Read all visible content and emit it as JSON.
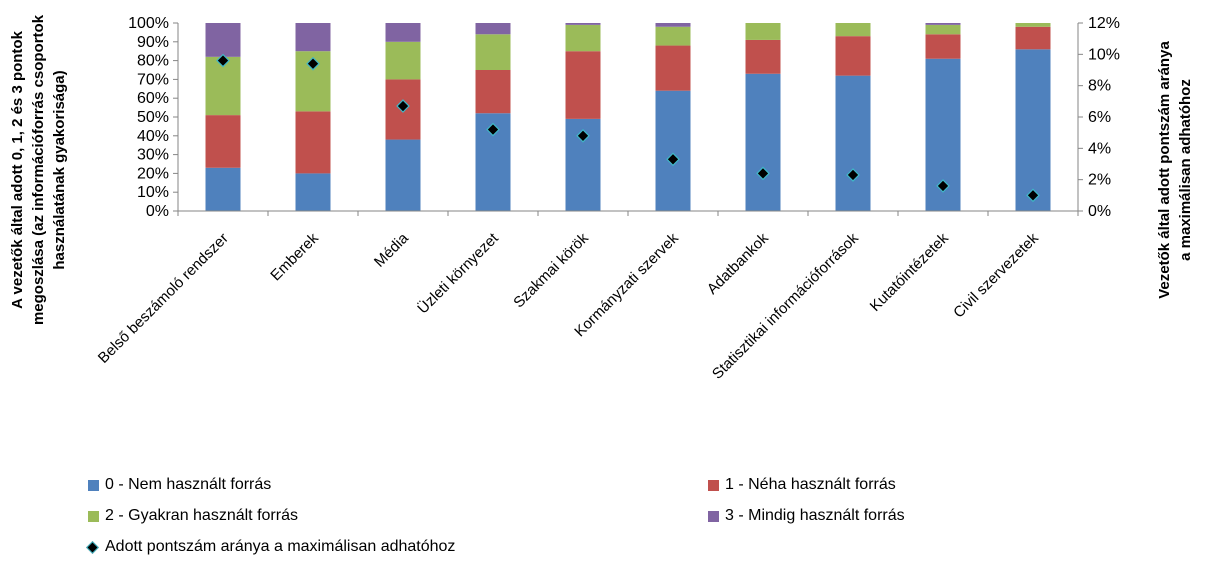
{
  "chart_data": {
    "type": "bar",
    "stacked": true,
    "categories": [
      "Belső beszámoló rendszer",
      "Emberek",
      "Média",
      "Üzleti környezet",
      "Szakmai körök",
      "Kormányzati szervek",
      "Adatbankok",
      "Statisztikai információforrások",
      "Kutatóintézetek",
      "Civil szervezetek"
    ],
    "series": [
      {
        "name": "0 - Nem használt forrás",
        "color": "#4f81bd",
        "values": [
          23,
          20,
          38,
          52,
          49,
          64,
          73,
          72,
          81,
          86
        ]
      },
      {
        "name": "1 - Néha használt forrás",
        "color": "#c0504d",
        "values": [
          28,
          33,
          32,
          23,
          36,
          24,
          18,
          21,
          13,
          12
        ]
      },
      {
        "name": "2 - Gyakran használt forrás",
        "color": "#9bbb59",
        "values": [
          31,
          32,
          20,
          19,
          14,
          10,
          9,
          7,
          5,
          2
        ]
      },
      {
        "name": "3 - Mindig használt forrás",
        "color": "#8064a2",
        "values": [
          18,
          15,
          10,
          6,
          1,
          2,
          0,
          0,
          1,
          0
        ]
      }
    ],
    "line_series": {
      "name": "Adott pontszám aránya a maximálisan adhatóhoz",
      "axis": "secondary",
      "marker": "diamond",
      "values": [
        9.6,
        9.4,
        6.7,
        5.2,
        4.8,
        3.3,
        2.4,
        2.3,
        1.6,
        1.0
      ]
    },
    "ylim": [
      0,
      100
    ],
    "y_ticks": [
      "0%",
      "10%",
      "20%",
      "30%",
      "40%",
      "50%",
      "60%",
      "70%",
      "80%",
      "90%",
      "100%"
    ],
    "y2lim": [
      0,
      12
    ],
    "y2_ticks": [
      "0%",
      "2%",
      "4%",
      "6%",
      "8%",
      "10%",
      "12%"
    ],
    "ylabel_lines": [
      "A vezetők által adott 0, 1, 2 és 3 pontok",
      "megoszlása (az információforrás csoportok",
      "használatának gyakorisága)"
    ],
    "y2label_lines": [
      "Vezetők által adott pontszám aránya",
      "a maximálisan  adhatóhoz"
    ],
    "grid": false,
    "legend_position": "bottom"
  }
}
